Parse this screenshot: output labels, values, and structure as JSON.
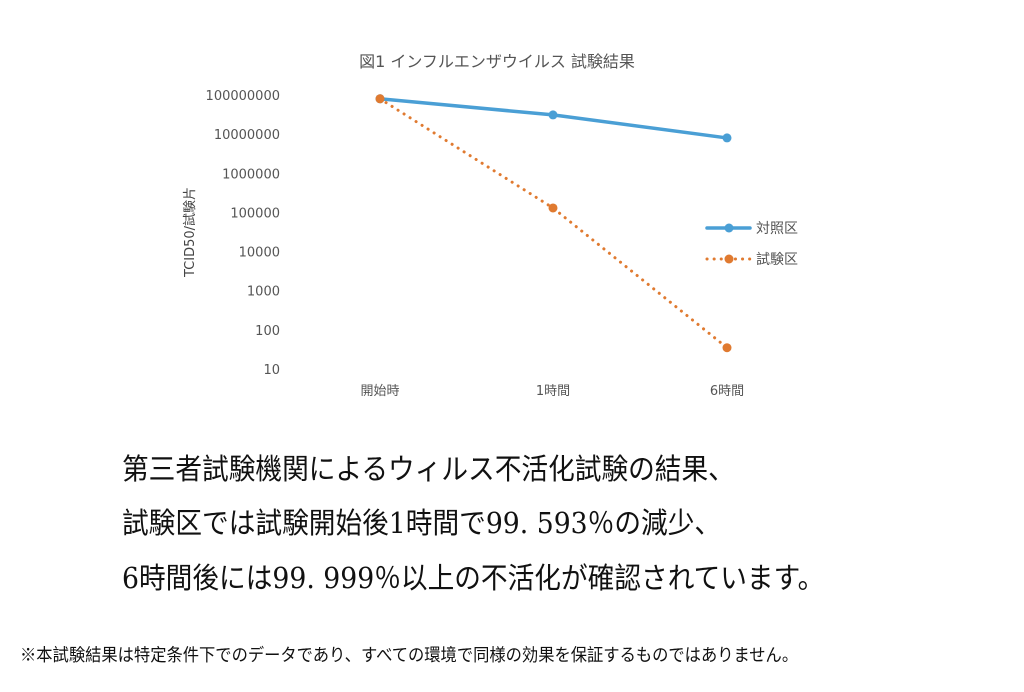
{
  "chart_data": {
    "type": "line",
    "title": "図1  インフルエンザウイルス  試験結果",
    "ylabel": "TCID50/試験片",
    "xlabel": "",
    "yscale": "log",
    "ylim": [
      10,
      100000000
    ],
    "yticks": [
      "100000000",
      "10000000",
      "1000000",
      "100000",
      "10000",
      "1000",
      "100",
      "10"
    ],
    "categories": [
      "開始時",
      "1時間",
      "6時間"
    ],
    "legend_position": "right",
    "grid": false,
    "series": [
      {
        "name": "対照区",
        "values": [
          80000000,
          31000000,
          8000000
        ],
        "color": "#4a9fd5",
        "style": "solid"
      },
      {
        "name": "試験区",
        "values": [
          80000000,
          130000,
          35
        ],
        "color": "#e07a30",
        "style": "dotted"
      }
    ]
  },
  "caption": {
    "lines": [
      "第三者試験機関によるウィルス不活化試験の結果、",
      "試験区では試験開始後1時間で99. 593％の減少、",
      "6時間後には99. 999％以上の不活化が確認されています。"
    ]
  },
  "footnote": "※本試験結果は特定条件下でのデータであり、すべての環境で同様の効果を保証するものではありません。"
}
